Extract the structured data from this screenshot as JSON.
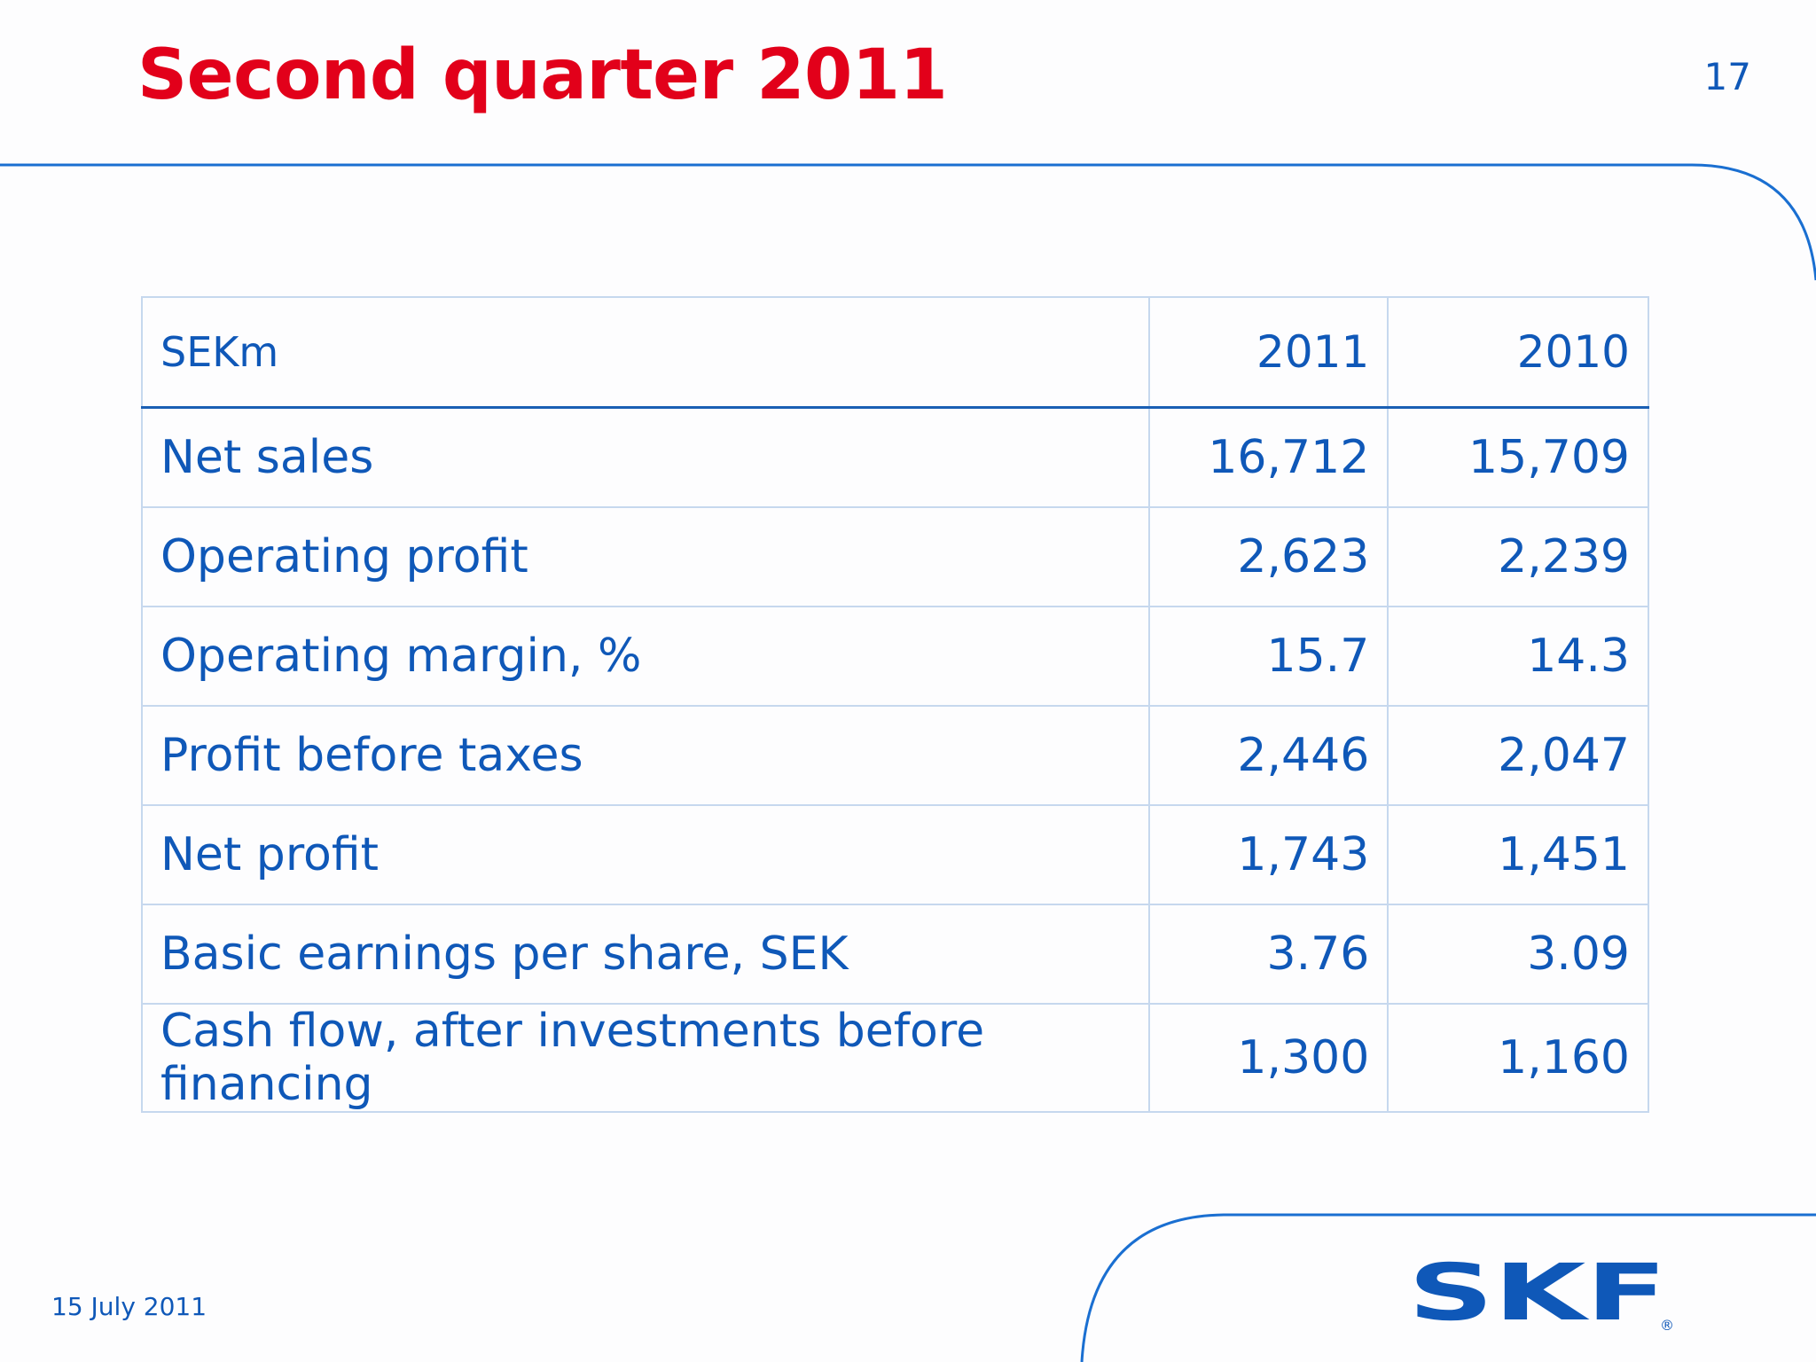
{
  "slide": {
    "title": "Second quarter 2011",
    "page_number": "17",
    "date": "15 July 2011"
  },
  "table": {
    "headers": [
      "SEKm",
      "2011",
      "2010"
    ],
    "rows": [
      {
        "label": "Net sales",
        "y2011": "16,712",
        "y2010": "15,709"
      },
      {
        "label": "Operating profit",
        "y2011": "2,623",
        "y2010": "2,239"
      },
      {
        "label": "Operating margin, %",
        "y2011": "15.7",
        "y2010": "14.3"
      },
      {
        "label": "Profit before taxes",
        "y2011": "2,446",
        "y2010": "2,047"
      },
      {
        "label": "Net profit",
        "y2011": "1,743",
        "y2010": "1,451"
      },
      {
        "label": "Basic earnings per share, SEK",
        "y2011": "3.76",
        "y2010": "3.09"
      },
      {
        "label": "Cash flow, after investments before financing",
        "y2011": "1,300",
        "y2010": "1,160"
      }
    ]
  },
  "logo": {
    "text": "SKF",
    "registered_mark": "®"
  },
  "colors": {
    "title_red": "#e2001a",
    "primary_blue": "#0f58b8",
    "table_border": "#c6d8ee",
    "decor_blue": "#1a6fd1"
  }
}
